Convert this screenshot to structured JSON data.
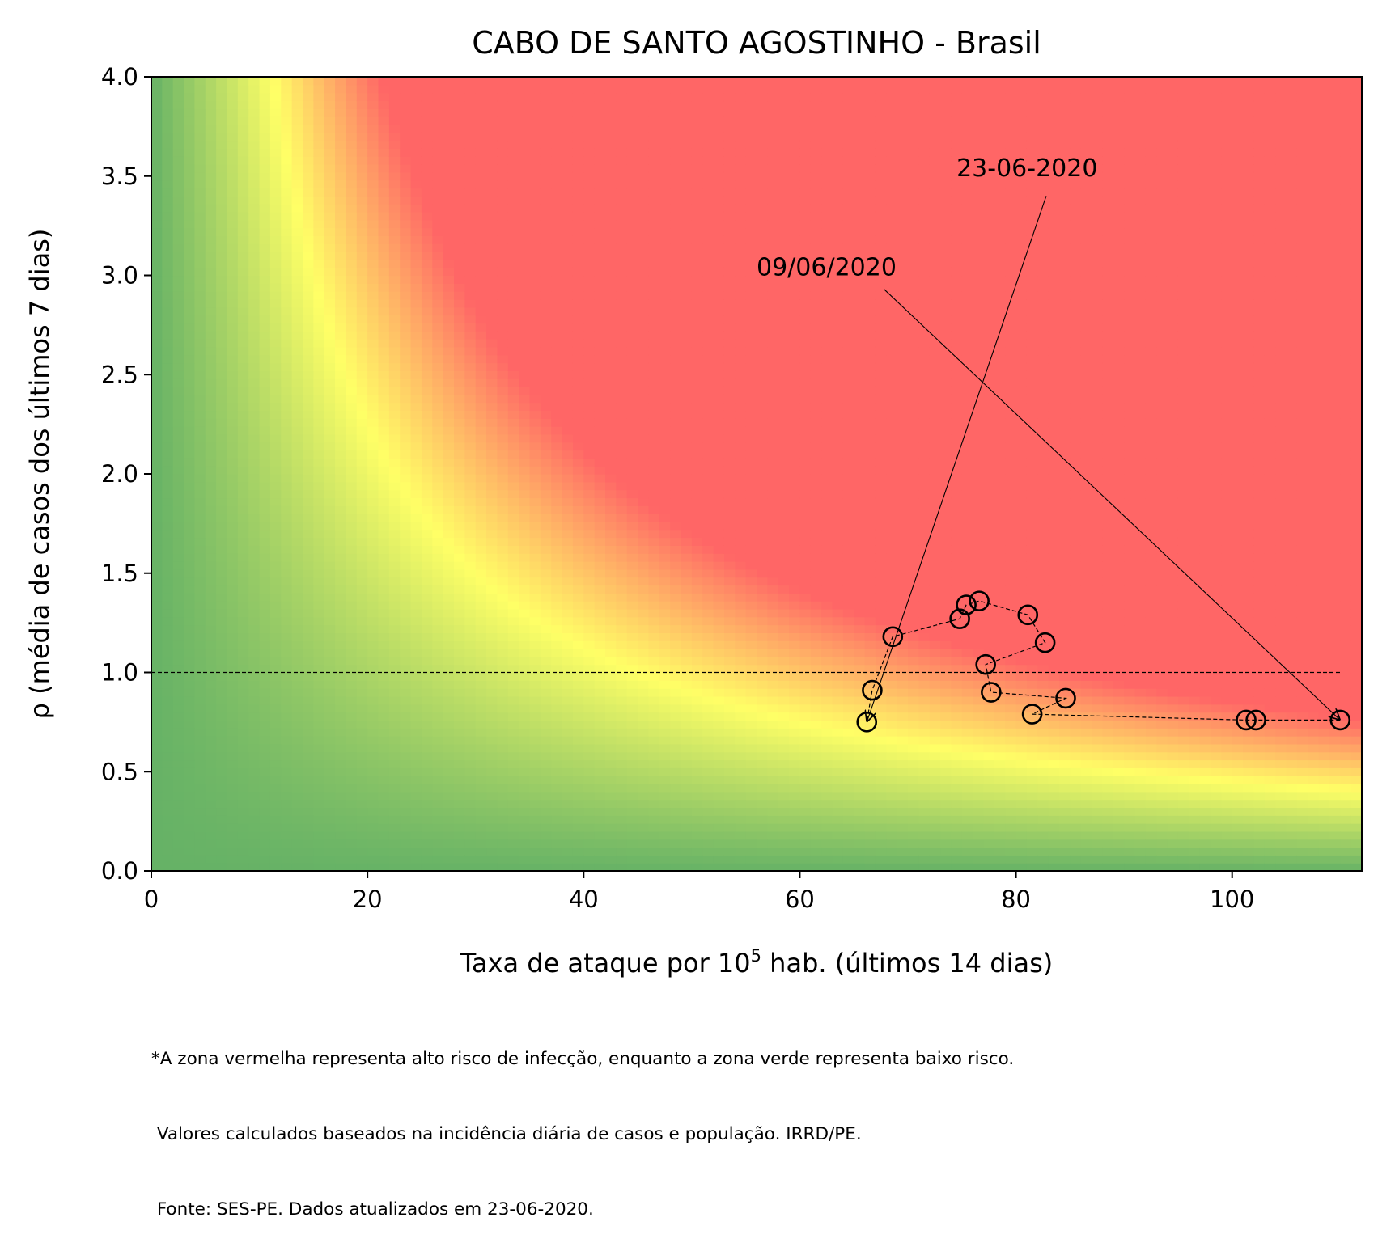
{
  "chart_data": {
    "type": "scatter",
    "title": "CABO DE SANTO AGOSTINHO - Brasil",
    "xlabel_prefix": "Taxa de ataque por 10",
    "xlabel_exp": "5",
    "xlabel_suffix": " hab. (últimos 14 dias)",
    "ylabel": "ρ (média de casos dos últimos 7 dias)",
    "xlim": [
      0,
      112
    ],
    "ylim": [
      0,
      4
    ],
    "xticks": [
      0,
      20,
      40,
      60,
      80,
      100
    ],
    "xtick_labels": [
      "0",
      "20",
      "40",
      "60",
      "80",
      "100"
    ],
    "yticks": [
      0,
      0.5,
      1,
      1.5,
      2,
      2.5,
      3,
      3.5,
      4
    ],
    "ytick_labels": [
      "0.0",
      "0.5",
      "1.0",
      "1.5",
      "2.0",
      "2.5",
      "3.0",
      "3.5",
      "4.0"
    ],
    "reference_line": {
      "y": 1.0,
      "style": "dashed"
    },
    "background": "risk heatmap: green (low) → yellow → red (high), boundary along ρ × taxa ≈ constant",
    "colors": {
      "green": "#66b266",
      "yellow": "#ffff66",
      "red": "#ff6666"
    },
    "series": [
      {
        "marker": "open-circle",
        "line": "dashed",
        "points": [
          {
            "x": 110.0,
            "y": 0.76
          },
          {
            "x": 102.2,
            "y": 0.76
          },
          {
            "x": 101.3,
            "y": 0.76
          },
          {
            "x": 81.5,
            "y": 0.79
          },
          {
            "x": 84.6,
            "y": 0.87
          },
          {
            "x": 77.7,
            "y": 0.9
          },
          {
            "x": 77.2,
            "y": 1.04
          },
          {
            "x": 82.7,
            "y": 1.15
          },
          {
            "x": 81.1,
            "y": 1.29
          },
          {
            "x": 76.6,
            "y": 1.36
          },
          {
            "x": 75.4,
            "y": 1.34
          },
          {
            "x": 74.8,
            "y": 1.27
          },
          {
            "x": 68.6,
            "y": 1.18
          },
          {
            "x": 66.7,
            "y": 0.91
          },
          {
            "x": 66.2,
            "y": 0.75
          }
        ]
      }
    ],
    "annotations": [
      {
        "text": "09/06/2020",
        "text_x": 56.0,
        "text_y": 3.0,
        "line_from_x": 67.8,
        "line_from_y": 2.93,
        "arrow_to_x": 110.0,
        "arrow_to_y": 0.76
      },
      {
        "text": "23-06-2020",
        "text_x": 74.5,
        "text_y": 3.5,
        "line_from_x": 82.8,
        "line_from_y": 3.4,
        "arrow_to_x": 66.2,
        "arrow_to_y": 0.75
      }
    ]
  },
  "footnote": {
    "line1": "*A zona vermelha representa alto risco de infecção, enquanto a zona verde representa baixo risco.",
    "line2": " Valores calculados baseados na incidência diária de casos e população. IRRD/PE.",
    "line3": " Fonte: SES-PE. Dados atualizados em 23-06-2020."
  }
}
